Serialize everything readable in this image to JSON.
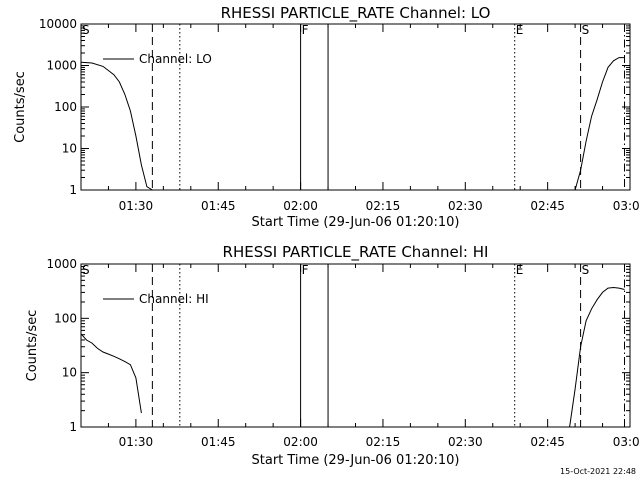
{
  "chart_data": [
    {
      "type": "line",
      "title": "RHESSI PARTICLE_RATE Channel: LO",
      "xlabel": "Start Time (29-Jun-06 01:20:10)",
      "ylabel": "Counts/sec",
      "yscale": "log",
      "xlim": [
        "01:20",
        "03:00"
      ],
      "ylim": [
        1,
        10000
      ],
      "xticks": [
        "01:30",
        "01:45",
        "02:00",
        "02:15",
        "02:30",
        "02:45",
        "03:00"
      ],
      "yticks": [
        "1",
        "10",
        "100",
        "1000",
        "10000"
      ],
      "legend": {
        "position": "top-left",
        "entries": [
          "Channel: LO"
        ]
      },
      "series": [
        {
          "name": "Channel: LO",
          "x": [
            "01:20",
            "01:22",
            "01:24",
            "01:26",
            "01:27",
            "01:28",
            "01:29",
            "01:30",
            "01:31",
            "01:32",
            "01:33",
            "02:50",
            "02:51",
            "02:52",
            "02:53",
            "02:54",
            "02:55",
            "02:56",
            "02:57",
            "02:58",
            "02:59"
          ],
          "y": [
            1200,
            1150,
            950,
            600,
            400,
            200,
            80,
            20,
            4,
            1.2,
            1,
            1,
            3,
            15,
            60,
            150,
            400,
            900,
            1300,
            1550,
            1550
          ]
        }
      ],
      "markers": [
        {
          "label": "S",
          "x": "01:20",
          "style": "dash-dot"
        },
        {
          "label": "",
          "x": "01:33",
          "style": "dashed"
        },
        {
          "label": "",
          "x": "01:38",
          "style": "dotted"
        },
        {
          "label": "F",
          "x": "02:00",
          "style": "solid"
        },
        {
          "label": "",
          "x": "02:05",
          "style": "solid"
        },
        {
          "label": "E",
          "x": "02:39",
          "style": "dotted"
        },
        {
          "label": "S",
          "x": "02:51",
          "style": "dashed"
        },
        {
          "label": "",
          "x": "02:59",
          "style": "dash-dot"
        }
      ]
    },
    {
      "type": "line",
      "title": "RHESSI PARTICLE_RATE Channel: HI",
      "xlabel": "Start Time (29-Jun-06 01:20:10)",
      "ylabel": "Counts/sec",
      "yscale": "log",
      "xlim": [
        "01:20",
        "03:00"
      ],
      "ylim": [
        1,
        1000
      ],
      "xticks": [
        "01:30",
        "01:45",
        "02:00",
        "02:15",
        "02:30",
        "02:45",
        "03:00"
      ],
      "yticks": [
        "1",
        "10",
        "100",
        "1000"
      ],
      "legend": {
        "position": "top-left",
        "entries": [
          "Channel: HI"
        ]
      },
      "series": [
        {
          "name": "Channel: HI",
          "x": [
            "01:20",
            "01:21",
            "01:22",
            "01:23",
            "01:24",
            "01:25",
            "01:26",
            "01:27",
            "01:28",
            "01:29",
            "01:30",
            "01:31",
            "02:49",
            "02:50",
            "02:51",
            "02:52",
            "02:53",
            "02:54",
            "02:55",
            "02:56",
            "02:57",
            "02:58",
            "02:59"
          ],
          "y": [
            52,
            40,
            35,
            28,
            24,
            22,
            20,
            18,
            16,
            14,
            8,
            1.8,
            1,
            5,
            30,
            90,
            150,
            220,
            300,
            360,
            370,
            360,
            340
          ]
        }
      ],
      "markers": [
        {
          "label": "S",
          "x": "01:20",
          "style": "dash-dot"
        },
        {
          "label": "",
          "x": "01:33",
          "style": "dashed"
        },
        {
          "label": "",
          "x": "01:38",
          "style": "dotted"
        },
        {
          "label": "F",
          "x": "02:00",
          "style": "solid"
        },
        {
          "label": "",
          "x": "02:05",
          "style": "solid"
        },
        {
          "label": "E",
          "x": "02:39",
          "style": "dotted"
        },
        {
          "label": "S",
          "x": "02:51",
          "style": "dashed"
        },
        {
          "label": "",
          "x": "02:59",
          "style": "dash-dot"
        }
      ]
    }
  ],
  "footer": {
    "timestamp": "15-Oct-2021 22:48"
  }
}
